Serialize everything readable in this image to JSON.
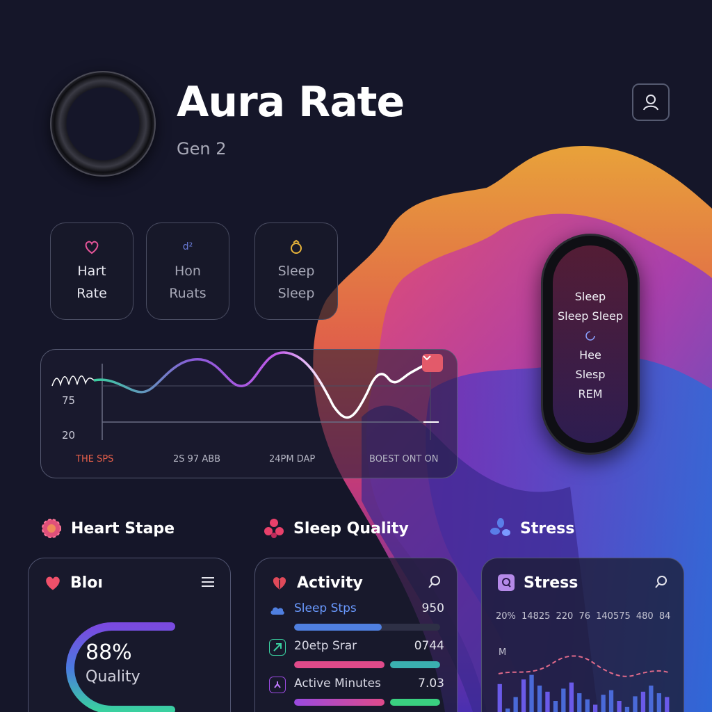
{
  "header": {
    "title": "Aura Rate",
    "subtitle": "Gen 2"
  },
  "tiles": [
    {
      "icon": "heart-outline-icon",
      "line1": "Hart",
      "line2": "Rate",
      "color": "#e8559a"
    },
    {
      "icon": "symbol-icon",
      "icon_text": "d²",
      "line1": "Hon",
      "line2": "Ruats",
      "color": "#6a7bd8"
    },
    {
      "icon": "ring-icon",
      "line1": "Sleep",
      "line2": "Sleep",
      "color": "#e8b43a"
    }
  ],
  "chart": {
    "y_ticks": [
      "75",
      "20"
    ],
    "x_labels": [
      "THE SPS",
      "2S 97 ABB",
      "24PM DAP",
      "BOEST ONT ON"
    ],
    "badge_icon": "chevron-down-icon"
  },
  "band": {
    "lines": [
      "Sleep",
      "Sleep Sleep",
      "Hee",
      "Slesp",
      "REM"
    ]
  },
  "sections": [
    {
      "icon": "flower-icon",
      "title": "Heart Stape",
      "color": "#e0507a"
    },
    {
      "icon": "petals-icon",
      "title": "Sleep Quality",
      "color": "#e8406a"
    },
    {
      "icon": "propeller-icon",
      "title": "Stress",
      "color": "#5a7ee8"
    }
  ],
  "cards": {
    "heart": {
      "title": "Bloı",
      "gauge_value": "88%",
      "gauge_label": "Quality",
      "gauge_fraction": 0.88
    },
    "activity": {
      "title": "Activity",
      "rows": [
        {
          "label": "Sleep Stps",
          "value": "950",
          "color": "#4f7fe0",
          "fill": 0.6
        },
        {
          "label": "20etp Srar",
          "value": "0744",
          "color": "#e04a8a",
          "fill": 0.85
        },
        {
          "label": "Active Minutes",
          "value": "7.03",
          "color": "#9a4ae0",
          "fill": 0.85
        }
      ]
    },
    "stress": {
      "title": "Stress",
      "tick_row": "20% 14825 220 76 140575 480 84",
      "axis_label": "M",
      "bars": [
        0.72,
        0.4,
        0.55,
        0.78,
        0.84,
        0.7,
        0.62,
        0.5,
        0.66,
        0.74,
        0.6,
        0.52,
        0.45,
        0.58,
        0.64,
        0.5,
        0.42,
        0.56,
        0.62,
        0.7,
        0.6,
        0.55
      ]
    }
  },
  "colors": {
    "background": "#151629",
    "accent_pink": "#e35a6a",
    "accent_purple": "#a34be0",
    "accent_teal": "#3ad0b0"
  }
}
